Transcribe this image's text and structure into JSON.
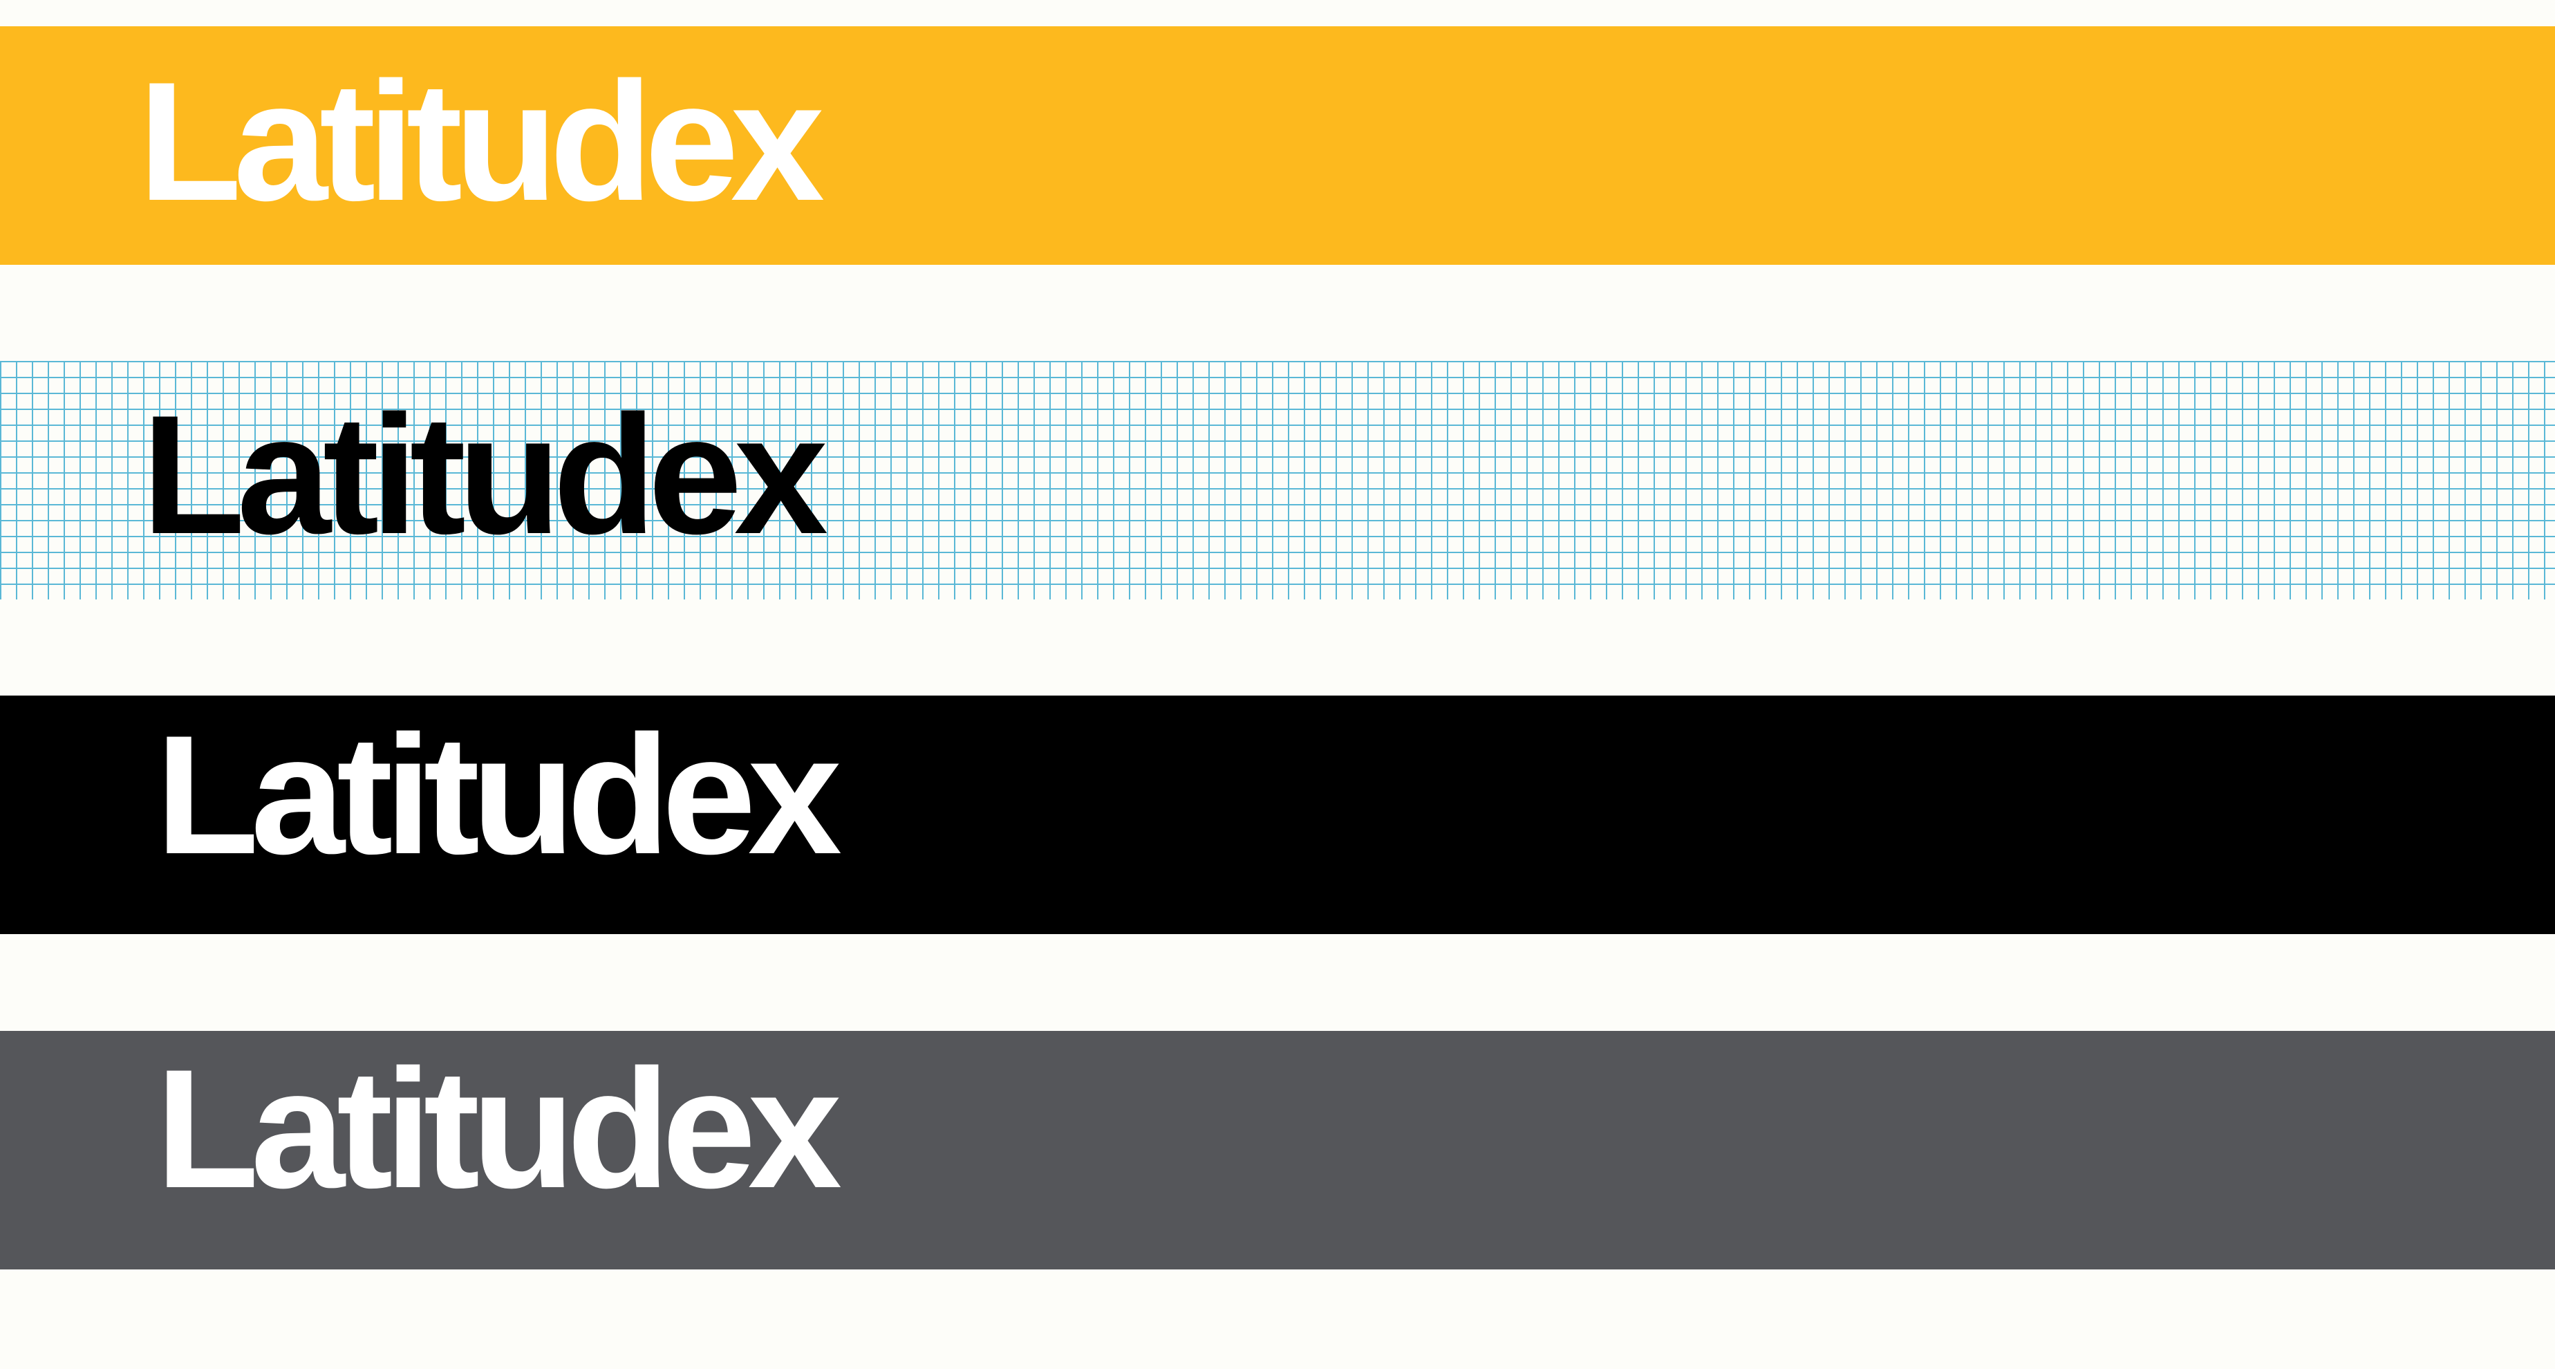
{
  "bands": [
    {
      "id": "yellow",
      "wordmark": "Latitudex",
      "background": "#FDB91E",
      "text_color": "#FFFFFF"
    },
    {
      "id": "grid",
      "wordmark": "Latitudex",
      "background": "#FDFDF9",
      "grid_color": "#5AB8D6",
      "text_color": "#000000"
    },
    {
      "id": "black",
      "wordmark": "Latitudex",
      "background": "#000000",
      "text_color": "#FFFFFF"
    },
    {
      "id": "gray",
      "wordmark": "Latitudex",
      "background": "#55565A",
      "text_color": "#FFFFFF"
    }
  ],
  "page_background": "#FDFDF9"
}
